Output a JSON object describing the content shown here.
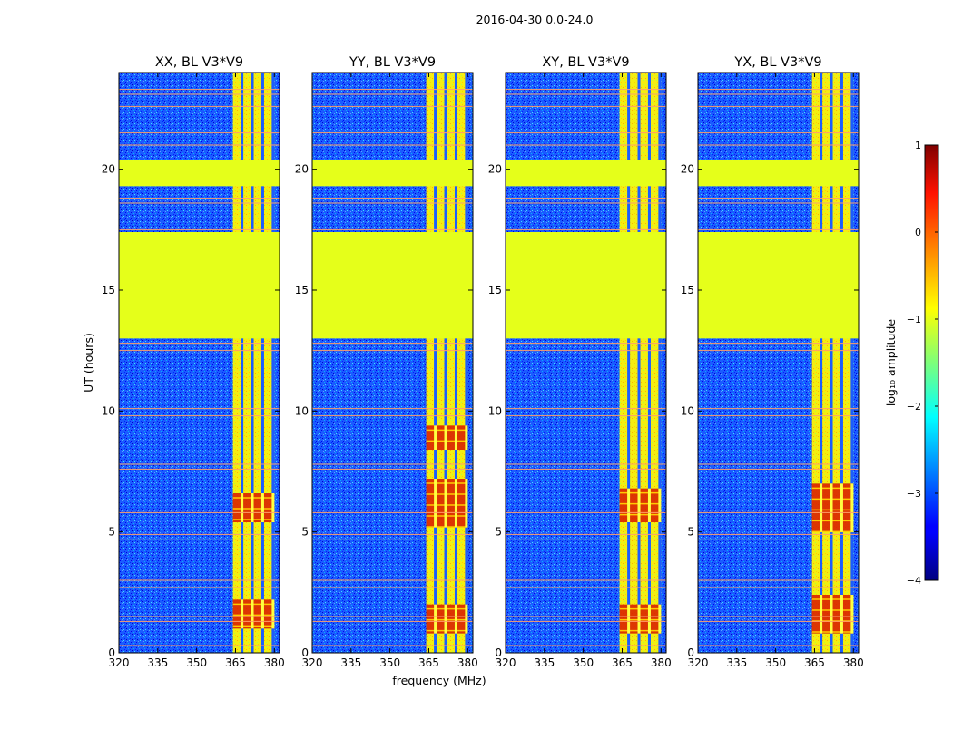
{
  "figure": {
    "suptitle": "2016-04-30 0.0-24.0",
    "xlabel": "frequency (MHz)",
    "ylabel": "UT (hours)"
  },
  "chart_data": {
    "type": "heatmap",
    "title": "2016-04-30 0.0-24.0",
    "xlabel": "frequency (MHz)",
    "ylabel": "UT (hours)",
    "xlim": [
      320,
      382
    ],
    "ylim": [
      0,
      24
    ],
    "x_ticks": [
      320,
      335,
      350,
      365,
      380
    ],
    "y_ticks": [
      0,
      5,
      10,
      15,
      20
    ],
    "colorscale": "jet",
    "panels": [
      {
        "title": "XX, BL V3*V9",
        "peak_hours": [
          [
            1.0,
            2.2
          ],
          [
            5.4,
            6.6
          ]
        ]
      },
      {
        "title": "YY, BL V3*V9",
        "peak_hours": [
          [
            0.8,
            2.0
          ],
          [
            5.2,
            7.2
          ],
          [
            8.4,
            9.4
          ]
        ]
      },
      {
        "title": "XY, BL V3*V9",
        "peak_hours": [
          [
            0.8,
            2.0
          ],
          [
            5.4,
            6.8
          ]
        ]
      },
      {
        "title": "YX, BL V3*V9",
        "peak_hours": [
          [
            0.8,
            2.4
          ],
          [
            5.0,
            7.0
          ]
        ]
      }
    ],
    "flagged_hours": [
      [
        13.0,
        17.4
      ],
      [
        19.3,
        20.4
      ]
    ],
    "flag_level": -1.0,
    "rfi_band_mhz": [
      364,
      380
    ],
    "rfi_channels_mhz": [
      367.5,
      371.5,
      375.5,
      379.5
    ],
    "horizontal_lines_hours": [
      0.3,
      1.3,
      1.5,
      2.7,
      3.0,
      4.7,
      4.9,
      5.8,
      7.6,
      7.8,
      9.8,
      10.1,
      12.5,
      12.8,
      17.5,
      18.6,
      18.8,
      21.0,
      21.5,
      22.6,
      23.1,
      23.3
    ],
    "colorbar": {
      "label": "log₁₀ amplitude",
      "min": -4,
      "max": 1,
      "ticks": [
        1,
        0,
        -1,
        -2,
        -3,
        -4
      ],
      "tick_labels": [
        "1",
        "0",
        "−1",
        "−2",
        "−3",
        "−4"
      ]
    }
  }
}
